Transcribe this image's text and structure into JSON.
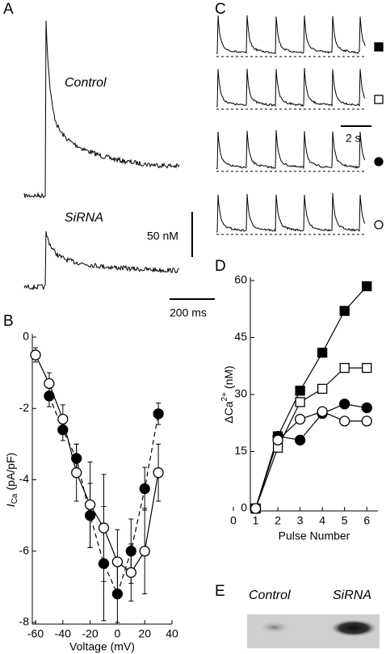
{
  "panel_labels": [
    "A",
    "B",
    "C",
    "D",
    "E"
  ],
  "panel_a": {
    "labels": [
      "Control",
      "SiRNA"
    ],
    "scale_y": "50 nM",
    "scale_x": "200 ms"
  },
  "panel_c": {
    "scale_x": "2 s"
  },
  "panel_e": {
    "labels": [
      "Control",
      "SiRNA"
    ]
  },
  "chart_data": [
    {
      "type": "line",
      "xlabel": "Voltage (mV)",
      "ylabel": "I",
      "ylabel_sub": "Ca",
      "ylabel_unit": "(pA/pF)",
      "x": [
        -60,
        -50,
        -40,
        -30,
        -20,
        -10,
        0,
        10,
        20,
        30
      ],
      "xlim": [
        -60,
        40
      ],
      "xticks": [
        -60,
        -40,
        -20,
        0,
        20,
        40
      ],
      "ylim": [
        -8,
        0
      ],
      "yticks": [
        0,
        -2,
        -4,
        -6,
        -8
      ],
      "series": [
        {
          "marker": "circle",
          "fill": "#000000",
          "color": "#000000",
          "line_style": "dashed",
          "values": [
            null,
            -1.65,
            -2.6,
            -3.4,
            -5.0,
            -6.35,
            -7.2,
            -6.0,
            -4.25,
            -2.15
          ],
          "errors": [
            null,
            0.3,
            0.3,
            0.4,
            0.9,
            1.6,
            0.8,
            0.9,
            0.6,
            0.3
          ]
        },
        {
          "marker": "circle",
          "fill": "#ffffff",
          "color": "#000000",
          "line_style": "solid",
          "values": [
            -0.5,
            -1.3,
            -2.3,
            -3.8,
            -4.7,
            -5.35,
            -6.3,
            -6.6,
            -6.0,
            -3.8
          ],
          "errors": [
            0.2,
            0.3,
            0.4,
            0.8,
            1.2,
            1.5,
            0.9,
            0.8,
            1.2,
            0.8
          ]
        }
      ]
    },
    {
      "type": "line",
      "xlabel": "Pulse Number",
      "ylabel": "ΔCa",
      "ylabel_sup": "2+",
      "ylabel_unit": "(nM)",
      "x": [
        1,
        2,
        3,
        4,
        5,
        6
      ],
      "xlim": [
        0,
        6.5
      ],
      "xticks": [
        0,
        1,
        2,
        3,
        4,
        5,
        6
      ],
      "ylim": [
        0,
        60
      ],
      "yticks": [
        0,
        15,
        30,
        45,
        60
      ],
      "series": [
        {
          "marker": "square",
          "fill": "#000000",
          "color": "#000000",
          "line_style": "solid",
          "values": [
            0,
            19,
            31,
            41,
            52,
            58.5
          ]
        },
        {
          "marker": "square",
          "fill": "#ffffff",
          "color": "#000000",
          "line_style": "solid",
          "values": [
            0,
            16,
            28,
            31.5,
            37,
            37
          ]
        },
        {
          "marker": "circle",
          "fill": "#000000",
          "color": "#000000",
          "line_style": "solid",
          "values": [
            0,
            19,
            18,
            25,
            27.5,
            26.5
          ]
        },
        {
          "marker": "circle",
          "fill": "#ffffff",
          "color": "#000000",
          "line_style": "solid",
          "values": [
            0,
            18,
            23.5,
            25.5,
            23,
            23
          ]
        }
      ]
    }
  ]
}
